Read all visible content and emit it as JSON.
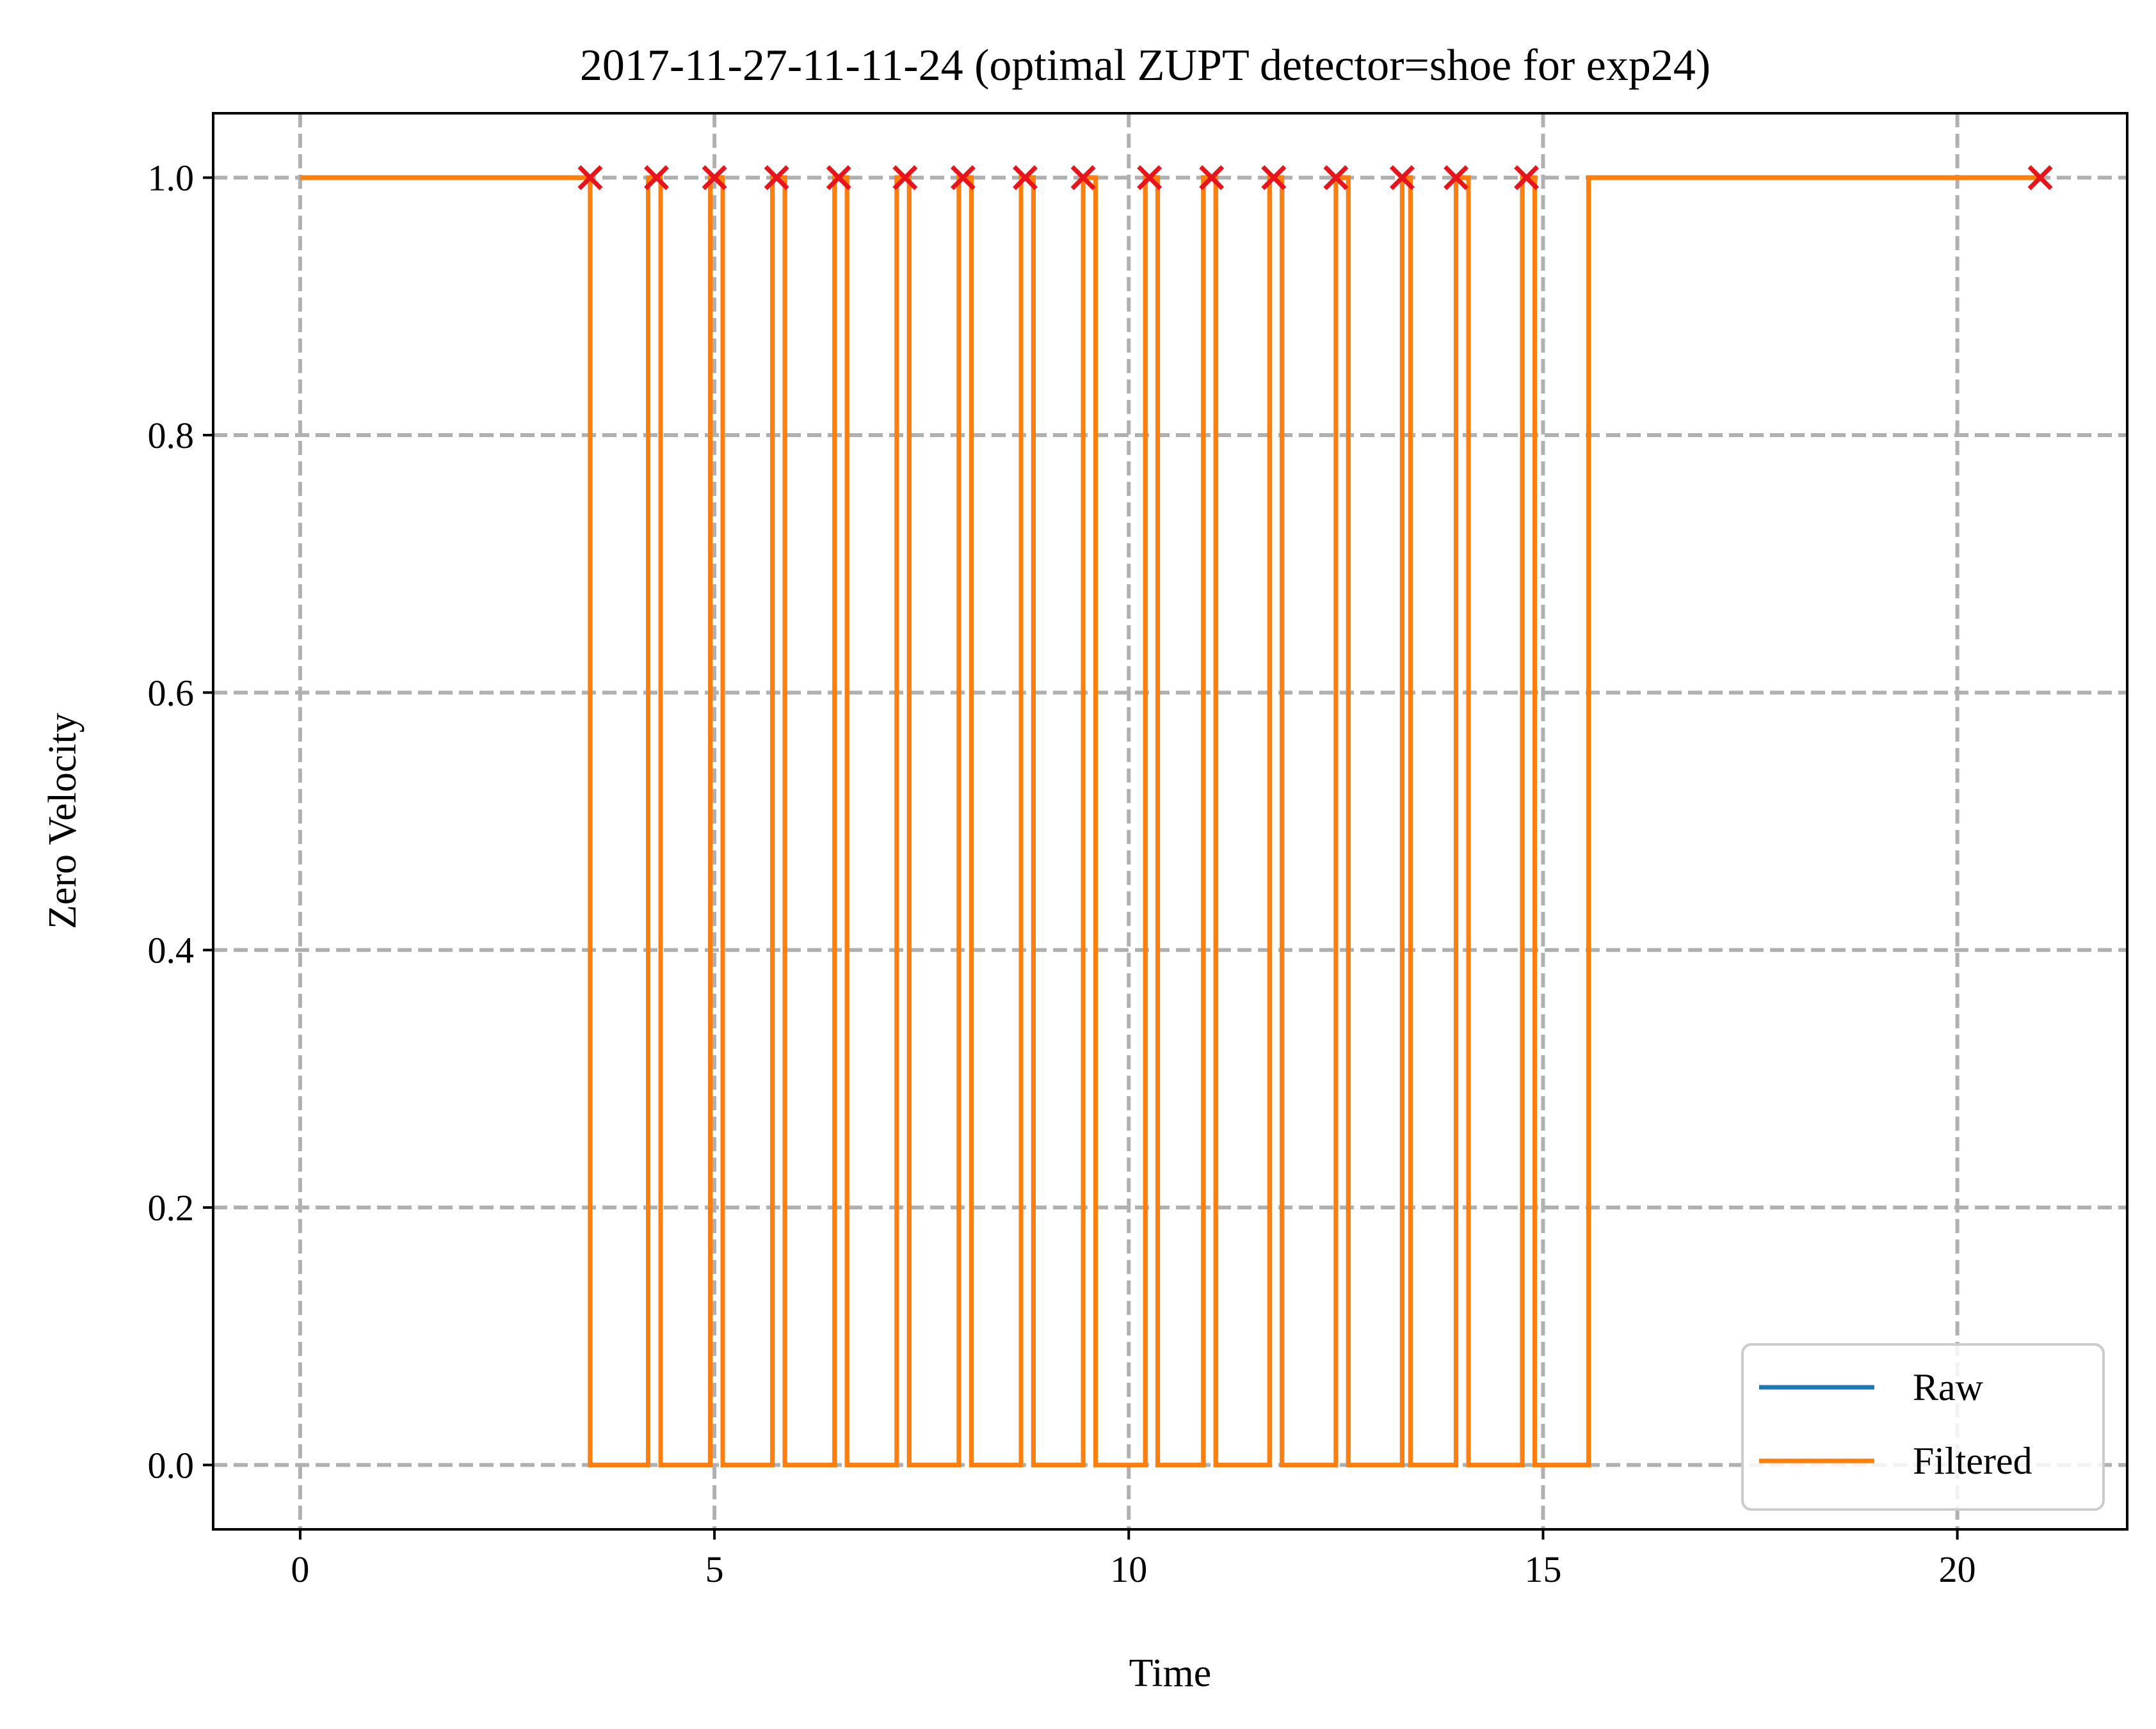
{
  "chart_data": {
    "type": "line",
    "title": "2017-11-27-11-11-24 (optimal ZUPT detector=shoe for exp24)",
    "xlabel": "Time",
    "ylabel": "Zero Velocity",
    "xlim": [
      -1.05,
      22.05
    ],
    "ylim": [
      -0.05,
      1.05
    ],
    "xticks": [
      0,
      5,
      10,
      15,
      20
    ],
    "xtick_labels": [
      "0",
      "5",
      "10",
      "15",
      "20"
    ],
    "yticks": [
      0.0,
      0.2,
      0.4,
      0.6,
      0.8,
      1.0
    ],
    "ytick_labels": [
      "0.0",
      "0.2",
      "0.4",
      "0.6",
      "0.8",
      "1.0"
    ],
    "grid": true,
    "legend_position": "lower-right",
    "series": [
      {
        "name": "Raw",
        "color": "#1f77b4",
        "x": [
          0,
          3.5,
          3.5,
          4.2,
          4.2,
          4.35,
          4.35,
          4.95,
          4.95,
          5.1,
          5.1,
          5.7,
          5.7,
          5.85,
          5.85,
          6.45,
          6.45,
          6.6,
          6.6,
          7.2,
          7.2,
          7.35,
          7.35,
          7.95,
          7.95,
          8.1,
          8.1,
          8.7,
          8.7,
          8.85,
          8.85,
          9.45,
          9.45,
          9.6,
          9.6,
          10.2,
          10.2,
          10.35,
          10.35,
          10.9,
          10.9,
          11.05,
          11.05,
          11.7,
          11.7,
          11.85,
          11.85,
          12.5,
          12.5,
          12.65,
          12.65,
          13.3,
          13.3,
          13.4,
          13.4,
          13.95,
          13.95,
          14.1,
          14.1,
          14.75,
          14.75,
          14.9,
          14.9,
          15.55,
          15.55,
          21.0
        ],
        "y": [
          1,
          1,
          0,
          0,
          1,
          1,
          0,
          0,
          1,
          1,
          0,
          0,
          1,
          1,
          0,
          0,
          1,
          1,
          0,
          0,
          1,
          1,
          0,
          0,
          1,
          1,
          0,
          0,
          1,
          1,
          0,
          0,
          1,
          1,
          0,
          0,
          1,
          1,
          0,
          0,
          1,
          1,
          0,
          0,
          1,
          1,
          0,
          0,
          1,
          1,
          0,
          0,
          1,
          1,
          0,
          0,
          1,
          1,
          0,
          0,
          1,
          1,
          0,
          0,
          1,
          1
        ]
      },
      {
        "name": "Filtered",
        "color": "#ff7f0e",
        "x": [
          0,
          3.5,
          3.5,
          4.2,
          4.2,
          4.35,
          4.35,
          4.95,
          4.95,
          5.1,
          5.1,
          5.7,
          5.7,
          5.85,
          5.85,
          6.45,
          6.45,
          6.6,
          6.6,
          7.2,
          7.2,
          7.35,
          7.35,
          7.95,
          7.95,
          8.1,
          8.1,
          8.7,
          8.7,
          8.85,
          8.85,
          9.45,
          9.45,
          9.6,
          9.6,
          10.2,
          10.2,
          10.35,
          10.35,
          10.9,
          10.9,
          11.05,
          11.05,
          11.7,
          11.7,
          11.85,
          11.85,
          12.5,
          12.5,
          12.65,
          12.65,
          13.3,
          13.3,
          13.4,
          13.4,
          13.95,
          13.95,
          14.1,
          14.1,
          14.75,
          14.75,
          14.9,
          14.9,
          15.55,
          15.55,
          21.0
        ],
        "y": [
          1,
          1,
          0,
          0,
          1,
          1,
          0,
          0,
          1,
          1,
          0,
          0,
          1,
          1,
          0,
          0,
          1,
          1,
          0,
          0,
          1,
          1,
          0,
          0,
          1,
          1,
          0,
          0,
          1,
          1,
          0,
          0,
          1,
          1,
          0,
          0,
          1,
          1,
          0,
          0,
          1,
          1,
          0,
          0,
          1,
          1,
          0,
          0,
          1,
          1,
          0,
          0,
          1,
          1,
          0,
          0,
          1,
          1,
          0,
          0,
          1,
          1,
          0,
          0,
          1,
          1
        ]
      }
    ],
    "markers": {
      "shape": "x",
      "color": "#e8141c",
      "x": [
        3.5,
        4.3,
        5.0,
        5.75,
        6.5,
        7.3,
        8.0,
        8.75,
        9.45,
        10.25,
        11.0,
        11.75,
        12.5,
        13.3,
        13.95,
        14.8,
        21.0
      ],
      "y": [
        1,
        1,
        1,
        1,
        1,
        1,
        1,
        1,
        1,
        1,
        1,
        1,
        1,
        1,
        1,
        1,
        1
      ]
    },
    "colors": {
      "grid": "#b0b0b0",
      "frame": "#000000",
      "legend_border": "#cccccc"
    }
  }
}
